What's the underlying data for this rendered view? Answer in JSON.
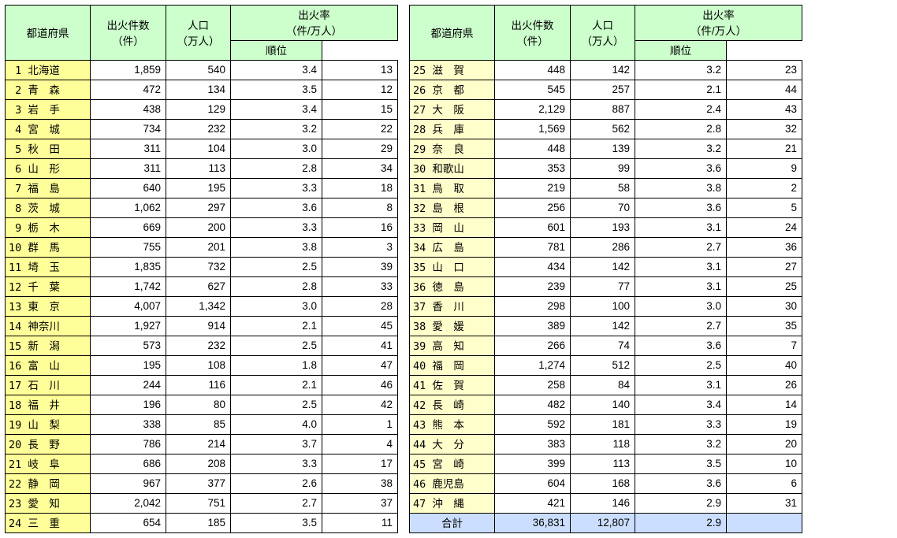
{
  "headers": {
    "pref": "都道府県",
    "fires": "出火件数\n（件）",
    "pop": "人口\n（万人）",
    "rate": "出火率\n（件/万人）",
    "rank": "順位",
    "total": "合計"
  },
  "col_widths": {
    "pref": 108,
    "fires": 96,
    "pop": 82,
    "rate": 116,
    "rank": 96
  },
  "colors": {
    "header_bg": "#ccffcc",
    "pref_left_bg": "#ffff99",
    "pref_right_bg": "#ffffcc",
    "total_bg": "#ccdeff"
  },
  "left": [
    {
      "no": 1,
      "name": "北海道",
      "fires": "1,859",
      "pop": "540",
      "rate": "3.4",
      "rank": 13
    },
    {
      "no": 2,
      "name": "青　森",
      "fires": "472",
      "pop": "134",
      "rate": "3.5",
      "rank": 12
    },
    {
      "no": 3,
      "name": "岩　手",
      "fires": "438",
      "pop": "129",
      "rate": "3.4",
      "rank": 15
    },
    {
      "no": 4,
      "name": "宮　城",
      "fires": "734",
      "pop": "232",
      "rate": "3.2",
      "rank": 22
    },
    {
      "no": 5,
      "name": "秋　田",
      "fires": "311",
      "pop": "104",
      "rate": "3.0",
      "rank": 29
    },
    {
      "no": 6,
      "name": "山　形",
      "fires": "311",
      "pop": "113",
      "rate": "2.8",
      "rank": 34
    },
    {
      "no": 7,
      "name": "福　島",
      "fires": "640",
      "pop": "195",
      "rate": "3.3",
      "rank": 18
    },
    {
      "no": 8,
      "name": "茨　城",
      "fires": "1,062",
      "pop": "297",
      "rate": "3.6",
      "rank": 8
    },
    {
      "no": 9,
      "name": "栃　木",
      "fires": "669",
      "pop": "200",
      "rate": "3.3",
      "rank": 16
    },
    {
      "no": 10,
      "name": "群　馬",
      "fires": "755",
      "pop": "201",
      "rate": "3.8",
      "rank": 3
    },
    {
      "no": 11,
      "name": "埼　玉",
      "fires": "1,835",
      "pop": "732",
      "rate": "2.5",
      "rank": 39
    },
    {
      "no": 12,
      "name": "千　葉",
      "fires": "1,742",
      "pop": "627",
      "rate": "2.8",
      "rank": 33
    },
    {
      "no": 13,
      "name": "東　京",
      "fires": "4,007",
      "pop": "1,342",
      "rate": "3.0",
      "rank": 28
    },
    {
      "no": 14,
      "name": "神奈川",
      "fires": "1,927",
      "pop": "914",
      "rate": "2.1",
      "rank": 45
    },
    {
      "no": 15,
      "name": "新　潟",
      "fires": "573",
      "pop": "232",
      "rate": "2.5",
      "rank": 41
    },
    {
      "no": 16,
      "name": "富　山",
      "fires": "195",
      "pop": "108",
      "rate": "1.8",
      "rank": 47
    },
    {
      "no": 17,
      "name": "石　川",
      "fires": "244",
      "pop": "116",
      "rate": "2.1",
      "rank": 46
    },
    {
      "no": 18,
      "name": "福　井",
      "fires": "196",
      "pop": "80",
      "rate": "2.5",
      "rank": 42
    },
    {
      "no": 19,
      "name": "山　梨",
      "fires": "338",
      "pop": "85",
      "rate": "4.0",
      "rank": 1
    },
    {
      "no": 20,
      "name": "長　野",
      "fires": "786",
      "pop": "214",
      "rate": "3.7",
      "rank": 4
    },
    {
      "no": 21,
      "name": "岐　阜",
      "fires": "686",
      "pop": "208",
      "rate": "3.3",
      "rank": 17
    },
    {
      "no": 22,
      "name": "静　岡",
      "fires": "967",
      "pop": "377",
      "rate": "2.6",
      "rank": 38
    },
    {
      "no": 23,
      "name": "愛　知",
      "fires": "2,042",
      "pop": "751",
      "rate": "2.7",
      "rank": 37
    },
    {
      "no": 24,
      "name": "三　重",
      "fires": "654",
      "pop": "185",
      "rate": "3.5",
      "rank": 11
    }
  ],
  "right": [
    {
      "no": 25,
      "name": "滋　賀",
      "fires": "448",
      "pop": "142",
      "rate": "3.2",
      "rank": 23
    },
    {
      "no": 26,
      "name": "京　都",
      "fires": "545",
      "pop": "257",
      "rate": "2.1",
      "rank": 44
    },
    {
      "no": 27,
      "name": "大　阪",
      "fires": "2,129",
      "pop": "887",
      "rate": "2.4",
      "rank": 43
    },
    {
      "no": 28,
      "name": "兵　庫",
      "fires": "1,569",
      "pop": "562",
      "rate": "2.8",
      "rank": 32
    },
    {
      "no": 29,
      "name": "奈　良",
      "fires": "448",
      "pop": "139",
      "rate": "3.2",
      "rank": 21
    },
    {
      "no": 30,
      "name": "和歌山",
      "fires": "353",
      "pop": "99",
      "rate": "3.6",
      "rank": 9
    },
    {
      "no": 31,
      "name": "鳥　取",
      "fires": "219",
      "pop": "58",
      "rate": "3.8",
      "rank": 2
    },
    {
      "no": 32,
      "name": "島　根",
      "fires": "256",
      "pop": "70",
      "rate": "3.6",
      "rank": 5
    },
    {
      "no": 33,
      "name": "岡　山",
      "fires": "601",
      "pop": "193",
      "rate": "3.1",
      "rank": 24
    },
    {
      "no": 34,
      "name": "広　島",
      "fires": "781",
      "pop": "286",
      "rate": "2.7",
      "rank": 36
    },
    {
      "no": 35,
      "name": "山　口",
      "fires": "434",
      "pop": "142",
      "rate": "3.1",
      "rank": 27
    },
    {
      "no": 36,
      "name": "徳　島",
      "fires": "239",
      "pop": "77",
      "rate": "3.1",
      "rank": 25
    },
    {
      "no": 37,
      "name": "香　川",
      "fires": "298",
      "pop": "100",
      "rate": "3.0",
      "rank": 30
    },
    {
      "no": 38,
      "name": "愛　媛",
      "fires": "389",
      "pop": "142",
      "rate": "2.7",
      "rank": 35
    },
    {
      "no": 39,
      "name": "高　知",
      "fires": "266",
      "pop": "74",
      "rate": "3.6",
      "rank": 7
    },
    {
      "no": 40,
      "name": "福　岡",
      "fires": "1,274",
      "pop": "512",
      "rate": "2.5",
      "rank": 40
    },
    {
      "no": 41,
      "name": "佐　賀",
      "fires": "258",
      "pop": "84",
      "rate": "3.1",
      "rank": 26
    },
    {
      "no": 42,
      "name": "長　崎",
      "fires": "482",
      "pop": "140",
      "rate": "3.4",
      "rank": 14
    },
    {
      "no": 43,
      "name": "熊　本",
      "fires": "592",
      "pop": "181",
      "rate": "3.3",
      "rank": 19
    },
    {
      "no": 44,
      "name": "大　分",
      "fires": "383",
      "pop": "118",
      "rate": "3.2",
      "rank": 20
    },
    {
      "no": 45,
      "name": "宮　崎",
      "fires": "399",
      "pop": "113",
      "rate": "3.5",
      "rank": 10
    },
    {
      "no": 46,
      "name": "鹿児島",
      "fires": "604",
      "pop": "168",
      "rate": "3.6",
      "rank": 6
    },
    {
      "no": 47,
      "name": "沖　縄",
      "fires": "421",
      "pop": "146",
      "rate": "2.9",
      "rank": 31
    }
  ],
  "total": {
    "fires": "36,831",
    "pop": "12,807",
    "rate": "2.9",
    "rank": ""
  }
}
